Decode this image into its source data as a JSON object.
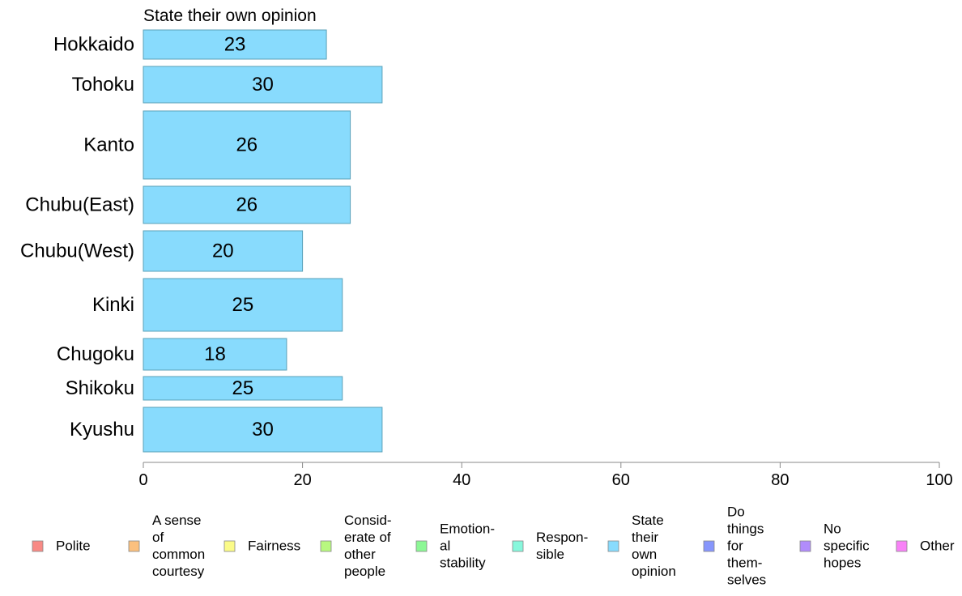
{
  "chart_data": {
    "type": "bar",
    "orientation": "horizontal",
    "title": "State their own opinion",
    "categories": [
      "Hokkaido",
      "Tohoku",
      "Kanto",
      "Chubu(East)",
      "Chubu(West)",
      "Kinki",
      "Chugoku",
      "Shikoku",
      "Kyushu"
    ],
    "values": [
      23,
      30,
      26,
      26,
      20,
      25,
      18,
      25,
      30
    ],
    "value_labels": [
      "23",
      "30",
      "26",
      "26",
      "20",
      "25",
      "18",
      "25",
      "30"
    ],
    "xlim": [
      0,
      100
    ],
    "xticks": [
      0,
      20,
      40,
      60,
      80,
      100
    ],
    "xtick_labels": [
      "0",
      "20",
      "40",
      "60",
      "80",
      "100"
    ],
    "bar_color": "#88dbfd",
    "bar_border": "#5aa0b8",
    "grid": false,
    "legend_position": "bottom",
    "legend": [
      {
        "lines": [
          "Polite"
        ],
        "color": "#f88a85"
      },
      {
        "lines": [
          "A sense",
          "of",
          "common",
          "courtesy"
        ],
        "color": "#fbc07e"
      },
      {
        "lines": [
          "Fairness"
        ],
        "color": "#fbfb88"
      },
      {
        "lines": [
          "Consid-",
          "erate of",
          "other",
          "people"
        ],
        "color": "#b8f880"
      },
      {
        "lines": [
          "Emotion-",
          "al",
          "stability"
        ],
        "color": "#8cf795"
      },
      {
        "lines": [
          "Respon-",
          "sible"
        ],
        "color": "#87f7dc"
      },
      {
        "lines": [
          "State",
          "their",
          "own",
          "opinion"
        ],
        "color": "#88dbfd"
      },
      {
        "lines": [
          "Do",
          "things",
          "for",
          "them-",
          "selves"
        ],
        "color": "#8796fc"
      },
      {
        "lines": [
          "No",
          "specific",
          "hopes"
        ],
        "color": "#b18cfb"
      },
      {
        "lines": [
          "Other"
        ],
        "color": "#f882f7"
      }
    ]
  }
}
